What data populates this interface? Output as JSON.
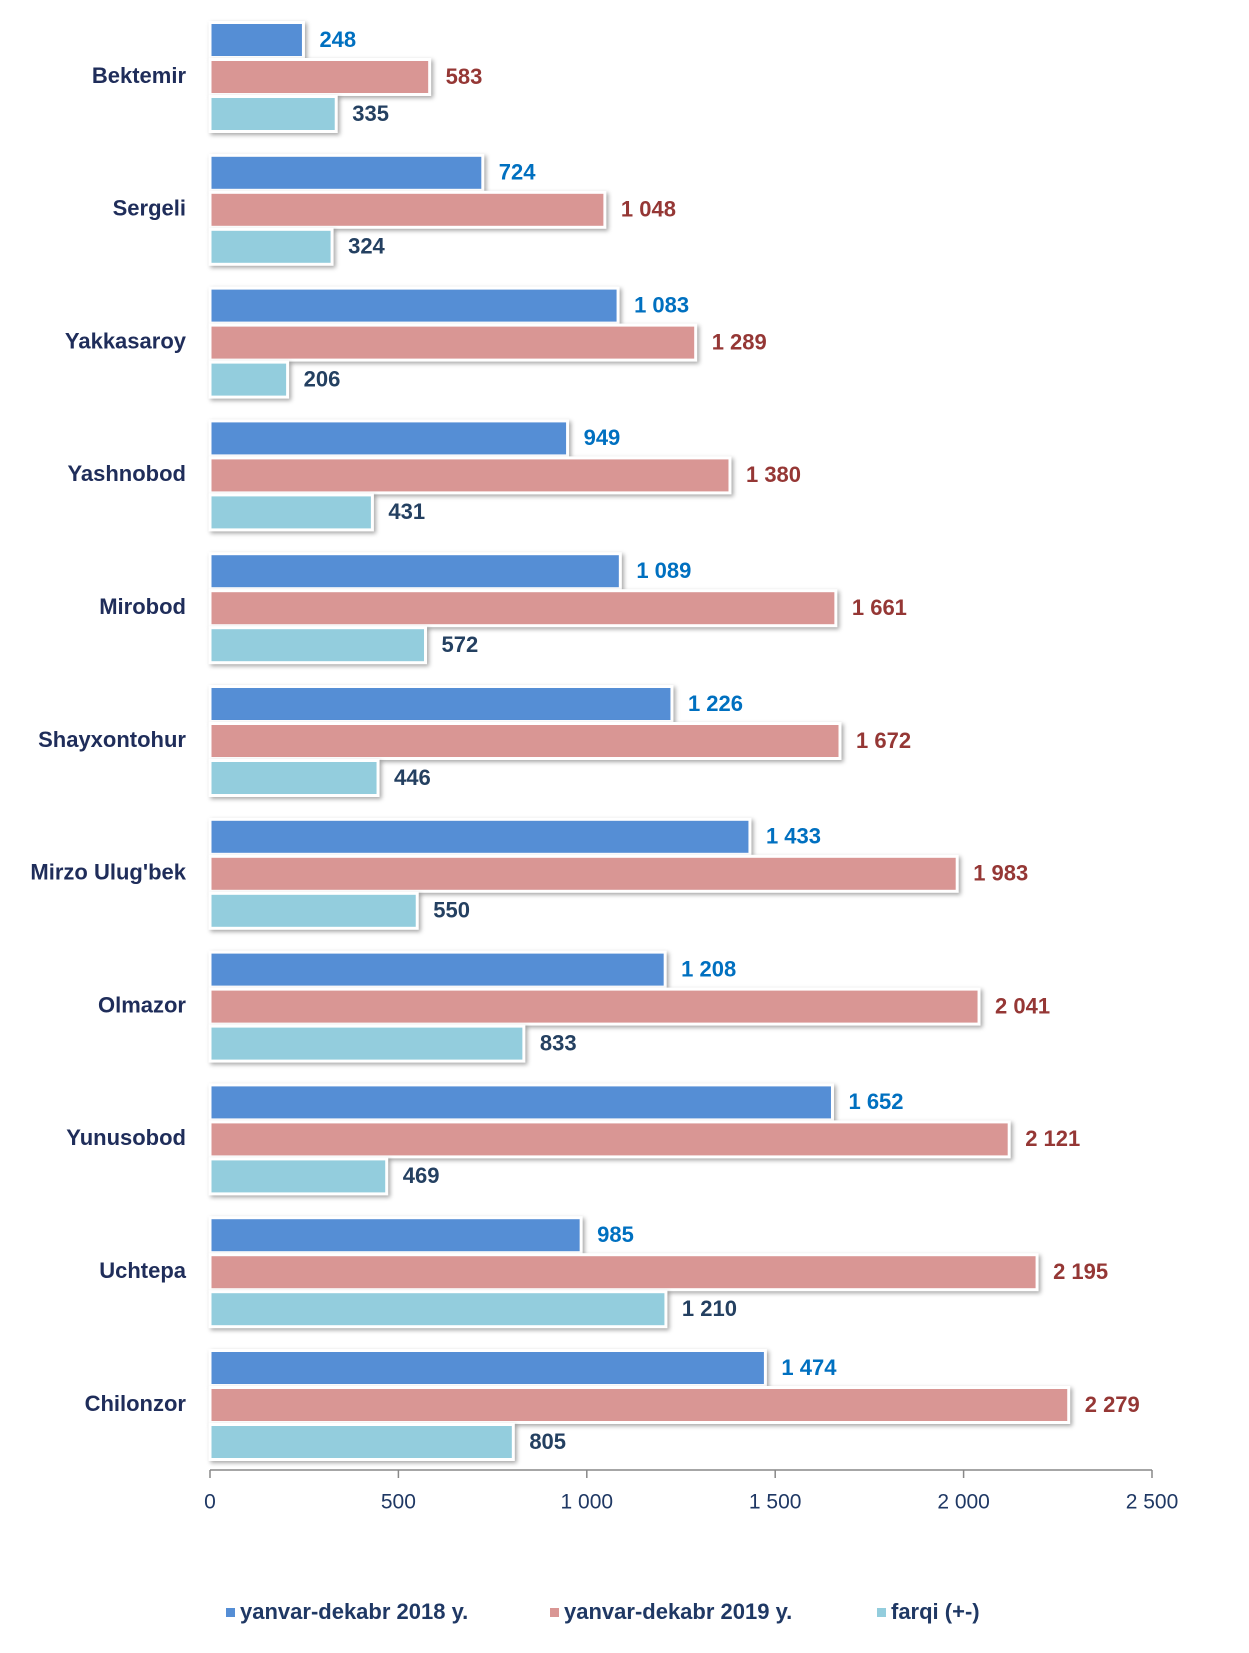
{
  "chart_data": {
    "type": "hbar",
    "categories": [
      "Bektemir",
      "Sergeli",
      "Yakkasaroy",
      "Yashnobod",
      "Mirobod",
      "Shayxontohur",
      "Mirzo Ulug'bek",
      "Olmazor",
      "Yunusobod",
      "Uchtepa",
      "Chilonzor"
    ],
    "series": [
      {
        "name": "yanvar-dekabr 2018 y.",
        "color": "#558ed5",
        "label_color": "#0070c0",
        "values": [
          248,
          724,
          1083,
          949,
          1089,
          1226,
          1433,
          1208,
          1652,
          985,
          1474
        ],
        "value_labels": [
          "248",
          "724",
          "1 083",
          "949",
          "1 089",
          "1 226",
          "1 433",
          "1 208",
          "1 652",
          "985",
          "1 474"
        ]
      },
      {
        "name": "yanvar-dekabr 2019 y.",
        "color": "#d99694",
        "label_color": "#953735",
        "values": [
          583,
          1048,
          1289,
          1380,
          1661,
          1672,
          1983,
          2041,
          2121,
          2195,
          2279
        ],
        "value_labels": [
          "583",
          "1 048",
          "1 289",
          "1 380",
          "1 661",
          "1 672",
          "1 983",
          "2 041",
          "2 121",
          "2 195",
          "2 279"
        ]
      },
      {
        "name": "farqi (+-)",
        "color": "#93cddd",
        "label_color": "#244061",
        "values": [
          335,
          324,
          206,
          431,
          572,
          446,
          550,
          833,
          469,
          1210,
          805
        ],
        "value_labels": [
          "335",
          "324",
          "206",
          "431",
          "572",
          "446",
          "550",
          "833",
          "469",
          "1 210",
          "805"
        ]
      }
    ],
    "xlim": [
      0,
      2500
    ],
    "xticks": [
      0,
      500,
      {
        "value": 1000,
        "label": "1 000"
      },
      {
        "value": 1500,
        "label": "1 500"
      },
      {
        "value": 2000,
        "label": "2 000"
      },
      {
        "value": 2500,
        "label": "2 500"
      }
    ],
    "legend": "bottom",
    "grid": false
  }
}
